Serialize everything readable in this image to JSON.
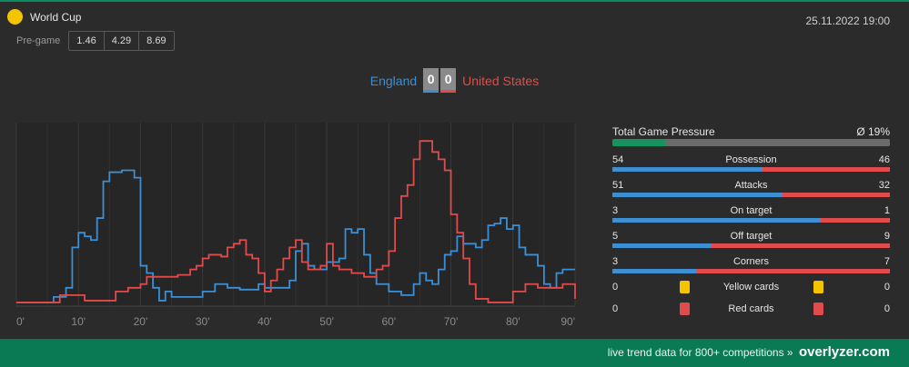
{
  "match": {
    "competition": "World Cup",
    "competition_icon": "yellow-ball-icon",
    "datetime": "25.11.2022 19:00",
    "pregame_label": "Pre-game",
    "odds": [
      "1.46",
      "4.29",
      "8.69"
    ],
    "home_team": "England",
    "away_team": "United States",
    "home_score": "0",
    "away_score": "0"
  },
  "colors": {
    "home": "#3d8fd4",
    "away": "#e04b4b",
    "accent": "#0d8a5f"
  },
  "stats": {
    "tgp_label": "Total Game Pressure",
    "tgp_value": "Ø 19%",
    "tgp_fraction": 0.19,
    "rows": [
      {
        "name": "Possession",
        "home": "54",
        "away": "46"
      },
      {
        "name": "Attacks",
        "home": "51",
        "away": "32"
      },
      {
        "name": "On target",
        "home": "3",
        "away": "1"
      },
      {
        "name": "Off target",
        "home": "5",
        "away": "9"
      },
      {
        "name": "Corners",
        "home": "3",
        "away": "7"
      }
    ],
    "cards": [
      {
        "name": "Yellow cards",
        "home": "0",
        "away": "0",
        "color": "yellow"
      },
      {
        "name": "Red cards",
        "home": "0",
        "away": "0",
        "color": "red"
      }
    ]
  },
  "footer": {
    "text": "live trend data for 800+ competitions »",
    "brand": "overlyzer.com"
  },
  "chart_data": {
    "type": "line",
    "x_ticks": [
      "0'",
      "10'",
      "20'",
      "30'",
      "40'",
      "50'",
      "60'",
      "70'",
      "80'",
      "90'"
    ],
    "xlim": [
      0,
      90
    ],
    "ylim": [
      0,
      100
    ],
    "grid": true,
    "series": [
      {
        "name": "England",
        "color": "#3d8fd4",
        "points": [
          [
            0,
            2
          ],
          [
            2,
            2
          ],
          [
            6,
            5
          ],
          [
            8,
            10
          ],
          [
            9,
            32
          ],
          [
            10,
            40
          ],
          [
            11,
            38
          ],
          [
            12,
            36
          ],
          [
            13,
            48
          ],
          [
            14,
            68
          ],
          [
            15,
            73
          ],
          [
            17,
            74
          ],
          [
            19,
            70
          ],
          [
            20,
            22
          ],
          [
            21,
            18
          ],
          [
            22,
            10
          ],
          [
            23,
            3
          ],
          [
            24,
            8
          ],
          [
            25,
            5
          ],
          [
            26,
            5
          ],
          [
            30,
            8
          ],
          [
            32,
            12
          ],
          [
            34,
            10
          ],
          [
            36,
            9
          ],
          [
            38,
            9
          ],
          [
            39,
            12
          ],
          [
            40,
            10
          ],
          [
            42,
            10
          ],
          [
            44,
            14
          ],
          [
            45,
            30
          ],
          [
            46,
            34
          ],
          [
            47,
            22
          ],
          [
            48,
            20
          ],
          [
            50,
            24
          ],
          [
            52,
            26
          ],
          [
            53,
            42
          ],
          [
            54,
            40
          ],
          [
            55,
            42
          ],
          [
            56,
            28
          ],
          [
            57,
            18
          ],
          [
            58,
            12
          ],
          [
            60,
            8
          ],
          [
            62,
            6
          ],
          [
            64,
            12
          ],
          [
            65,
            18
          ],
          [
            66,
            14
          ],
          [
            67,
            12
          ],
          [
            68,
            20
          ],
          [
            69,
            28
          ],
          [
            70,
            30
          ],
          [
            71,
            38
          ],
          [
            72,
            34
          ],
          [
            74,
            32
          ],
          [
            75,
            36
          ],
          [
            76,
            44
          ],
          [
            77,
            45
          ],
          [
            78,
            48
          ],
          [
            79,
            42
          ],
          [
            80,
            44
          ],
          [
            81,
            32
          ],
          [
            82,
            28
          ],
          [
            84,
            22
          ],
          [
            85,
            12
          ],
          [
            86,
            10
          ],
          [
            87,
            18
          ],
          [
            88,
            20
          ],
          [
            89,
            20
          ],
          [
            90,
            20
          ]
        ]
      },
      {
        "name": "United States",
        "color": "#e04b4b",
        "points": [
          [
            0,
            2
          ],
          [
            6,
            2
          ],
          [
            7,
            6
          ],
          [
            9,
            6
          ],
          [
            11,
            3
          ],
          [
            15,
            3
          ],
          [
            16,
            8
          ],
          [
            18,
            10
          ],
          [
            20,
            12
          ],
          [
            21,
            16
          ],
          [
            24,
            16
          ],
          [
            26,
            17
          ],
          [
            28,
            20
          ],
          [
            29,
            22
          ],
          [
            30,
            26
          ],
          [
            31,
            28
          ],
          [
            33,
            27
          ],
          [
            34,
            32
          ],
          [
            35,
            34
          ],
          [
            36,
            36
          ],
          [
            37,
            28
          ],
          [
            38,
            26
          ],
          [
            39,
            18
          ],
          [
            40,
            8
          ],
          [
            41,
            14
          ],
          [
            42,
            20
          ],
          [
            43,
            26
          ],
          [
            44,
            32
          ],
          [
            45,
            36
          ],
          [
            46,
            24
          ],
          [
            47,
            20
          ],
          [
            49,
            22
          ],
          [
            50,
            34
          ],
          [
            51,
            22
          ],
          [
            52,
            20
          ],
          [
            54,
            18
          ],
          [
            56,
            16
          ],
          [
            58,
            20
          ],
          [
            59,
            22
          ],
          [
            60,
            30
          ],
          [
            61,
            48
          ],
          [
            62,
            60
          ],
          [
            63,
            66
          ],
          [
            64,
            80
          ],
          [
            65,
            90
          ],
          [
            67,
            84
          ],
          [
            68,
            80
          ],
          [
            69,
            74
          ],
          [
            70,
            50
          ],
          [
            71,
            40
          ],
          [
            72,
            26
          ],
          [
            73,
            12
          ],
          [
            74,
            4
          ],
          [
            76,
            2
          ],
          [
            78,
            2
          ],
          [
            80,
            8
          ],
          [
            82,
            12
          ],
          [
            84,
            10
          ],
          [
            86,
            10
          ],
          [
            88,
            12
          ],
          [
            90,
            4
          ]
        ]
      }
    ]
  }
}
